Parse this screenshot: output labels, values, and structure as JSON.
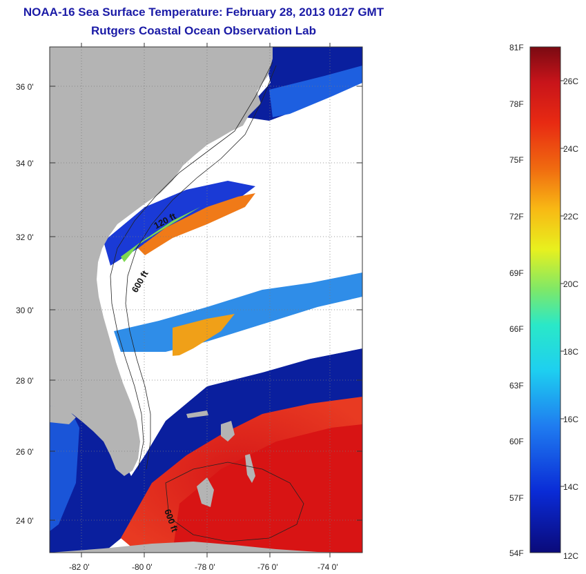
{
  "header": {
    "title": "NOAA-16 Sea Surface Temperature:  February 28, 2013 0127 GMT",
    "subtitle": "Rutgers Coastal Ocean Observation Lab"
  },
  "map": {
    "lon_ticks": [
      "-82 0'",
      "-80 0'",
      "-78 0'",
      "-76 0'",
      "-74 0'"
    ],
    "lat_ticks": [
      "36 0'",
      "34 0'",
      "32 0'",
      "30 0'",
      "28 0'",
      "26 0'",
      "24 0'"
    ],
    "contours": [
      "120 ft",
      "600 ft",
      "600 ft"
    ],
    "colors": {
      "land": "#b4b4b4",
      "cloud": "#ffffff",
      "cold": "#0a1f9e",
      "warm": "#e0231a",
      "grid": "#7a7a7a"
    }
  },
  "colorbar": {
    "fahrenheit": [
      "81F",
      "78F",
      "75F",
      "72F",
      "69F",
      "66F",
      "63F",
      "60F",
      "57F",
      "54F"
    ],
    "celsius": [
      "26C",
      "24C",
      "22C",
      "20C",
      "18C",
      "16C",
      "14C",
      "12C"
    ]
  }
}
